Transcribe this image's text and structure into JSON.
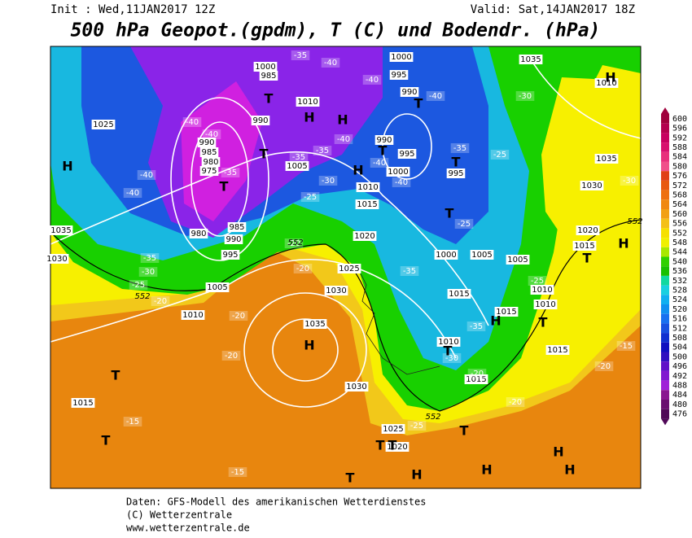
{
  "header": {
    "init": "Init : Wed,11JAN2017 12Z",
    "valid": "Valid: Sat,14JAN2017 18Z",
    "title": "500 hPa Geopot.(gpdm), T (C) und Bodendr. (hPa)"
  },
  "colorbar": {
    "labels": [
      "600",
      "596",
      "592",
      "588",
      "584",
      "580",
      "576",
      "572",
      "568",
      "564",
      "560",
      "556",
      "552",
      "548",
      "544",
      "540",
      "536",
      "532",
      "528",
      "524",
      "520",
      "516",
      "512",
      "508",
      "504",
      "500",
      "496",
      "492",
      "488",
      "484",
      "480",
      "476"
    ]
  },
  "map": {
    "pressure_labels": [
      "1035",
      "1000",
      "995",
      "990",
      "1010",
      "1000",
      "985",
      "990",
      "990",
      "985",
      "980",
      "975",
      "985",
      "980",
      "990",
      "995",
      "1005",
      "1010",
      "1025",
      "1035",
      "1030",
      "1015",
      "1005",
      "1010",
      "1015",
      "1020",
      "1025",
      "1030",
      "1035",
      "1030",
      "1025",
      "1020",
      "995",
      "990",
      "1000",
      "995",
      "1000",
      "1005",
      "1005",
      "1010",
      "1015",
      "1015",
      "1010",
      "1010",
      "1015",
      "1015",
      "1020",
      "1015",
      "1030",
      "1035",
      "1010"
    ],
    "temperature_labels": [
      "-40",
      "-35",
      "-40",
      "-40",
      "-30",
      "-40",
      "-40",
      "-40",
      "-40",
      "-35",
      "-35",
      "-35",
      "-30",
      "-25",
      "-40",
      "-40",
      "-40",
      "-35",
      "-25",
      "-25",
      "-30",
      "-35",
      "-30",
      "-25",
      "-20",
      "-20",
      "-20",
      "-20",
      "-20",
      "-35",
      "-25",
      "-35",
      "-30",
      "-20",
      "-15",
      "-20",
      "-20",
      "-15",
      "-15",
      "-25"
    ],
    "centers": [
      "H",
      "H",
      "H",
      "H",
      "H",
      "H",
      "H",
      "H",
      "H",
      "H",
      "H",
      "H",
      "T",
      "T",
      "T",
      "T",
      "T",
      "T",
      "T",
      "T",
      "T",
      "T",
      "T",
      "T",
      "T",
      "T",
      "T",
      "T"
    ],
    "thickness_labels": [
      "552",
      "552",
      "552",
      "552"
    ]
  },
  "footer": {
    "lines": [
      "Daten: GFS-Modell des amerikanischen Wetterdienstes",
      "(C) Wetterzentrale",
      "www.wetterzentrale.de"
    ]
  }
}
